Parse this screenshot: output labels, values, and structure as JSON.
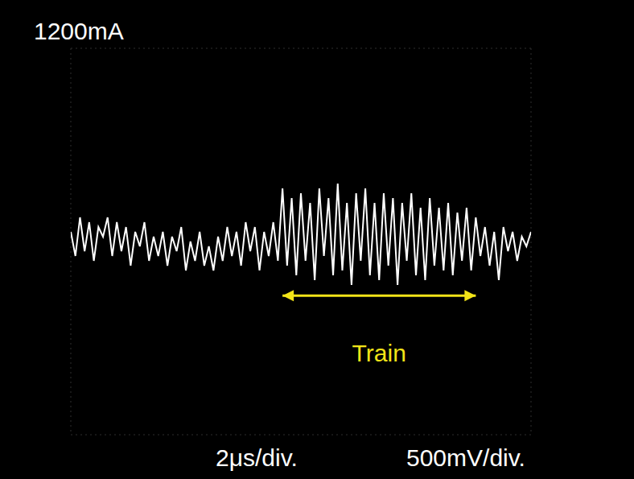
{
  "chart_data": {
    "type": "line",
    "title": "1200mA",
    "x": [
      0,
      0.2,
      0.4,
      0.6,
      0.8,
      1.0,
      1.2,
      1.4,
      1.6,
      1.8,
      2.0,
      2.2,
      2.4,
      2.6,
      2.8,
      3.0,
      3.2,
      3.4,
      3.6,
      3.8,
      4.0,
      4.2,
      4.4,
      4.6,
      4.8,
      5.0,
      5.2,
      5.4,
      5.6,
      5.8,
      6.0,
      6.2,
      6.4,
      6.6,
      6.8,
      7.0,
      7.2,
      7.4,
      7.6,
      7.8,
      8.0,
      8.2,
      8.4,
      8.6,
      8.8,
      9.0,
      9.2,
      9.4,
      9.6,
      9.8,
      10.0,
      10.2,
      10.4,
      10.6,
      10.8,
      11.0,
      11.2,
      11.4,
      11.6,
      11.8,
      12.0,
      12.2,
      12.4,
      12.6,
      12.8,
      13.0,
      13.2,
      13.4,
      13.6,
      13.8,
      14.0,
      14.2,
      14.4,
      14.6,
      14.8,
      15.0,
      15.2,
      15.4,
      15.6,
      15.8,
      16.0,
      16.2,
      16.4,
      16.6,
      16.8,
      17.0,
      17.2,
      17.4,
      17.6,
      17.8,
      18.0,
      18.2,
      18.4,
      18.6,
      18.8,
      19.0,
      19.2,
      19.4,
      19.6,
      19.8,
      20.0
    ],
    "values": [
      100,
      -150,
      250,
      -100,
      200,
      -200,
      150,
      50,
      250,
      -150,
      200,
      -100,
      150,
      -250,
      100,
      -50,
      200,
      -200,
      50,
      -150,
      100,
      -250,
      50,
      -100,
      150,
      -300,
      0,
      -200,
      100,
      -250,
      -50,
      -300,
      50,
      -200,
      150,
      -150,
      100,
      -250,
      200,
      -100,
      150,
      -300,
      100,
      -150,
      200,
      -200,
      550,
      -250,
      450,
      -350,
      500,
      -200,
      400,
      -400,
      550,
      -150,
      450,
      -350,
      600,
      -300,
      400,
      -450,
      500,
      -200,
      550,
      -350,
      400,
      -400,
      500,
      -250,
      450,
      -450,
      400,
      -200,
      500,
      -350,
      350,
      -400,
      450,
      -250,
      350,
      -300,
      400,
      -350,
      300,
      -200,
      350,
      -300,
      250,
      -150,
      150,
      -250,
      100,
      -400,
      150,
      -100,
      100,
      -200,
      50,
      -50,
      100
    ],
    "color": "#ffffff",
    "xlim": [
      0,
      20
    ],
    "ylim": [
      -2000,
      2000
    ],
    "xticks": [
      0,
      2,
      4,
      6,
      8,
      10,
      12,
      14,
      16,
      18,
      20
    ],
    "yticks": [
      -2000,
      -1500,
      -1000,
      -500,
      0,
      500,
      1000,
      1500,
      2000
    ],
    "grid": true,
    "tick_labels": false,
    "x_scale_label": "2μs/div.",
    "y_scale_label": "500mV/div.",
    "annotations": [
      {
        "text": "Train",
        "x_start": 9.2,
        "x_end": 17.6,
        "y": -560
      }
    ]
  }
}
